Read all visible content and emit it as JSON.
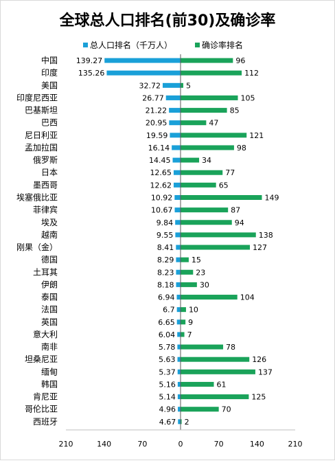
{
  "chart_data": {
    "type": "bar",
    "orientation": "horizontal-diverging",
    "title": "全球总人口排名(前30)及确诊率",
    "legend_position": "top",
    "grid": false,
    "xlim": [
      -210,
      210
    ],
    "x_tick_labels": [
      "210",
      "140",
      "70",
      "0",
      "70",
      "140",
      "210"
    ],
    "categories": [
      "中国",
      "印度",
      "美国",
      "印度尼西亚",
      "巴基斯坦",
      "巴西",
      "尼日利亚",
      "孟加拉国",
      "俄罗斯",
      "日本",
      "墨西哥",
      "埃塞俄比亚",
      "菲律宾",
      "埃及",
      "越南",
      "刚果（金）",
      "德国",
      "土耳其",
      "伊朗",
      "泰国",
      "法国",
      "英国",
      "意大利",
      "南非",
      "坦桑尼亚",
      "缅甸",
      "韩国",
      "肯尼亚",
      "哥伦比亚",
      "西班牙"
    ],
    "series": [
      {
        "name": "总人口排名（千万人）",
        "color": "#1aa0d8",
        "direction": "left",
        "values": [
          139.27,
          135.26,
          32.72,
          26.77,
          21.22,
          20.95,
          19.59,
          16.14,
          14.45,
          12.65,
          12.62,
          10.92,
          10.67,
          9.84,
          9.55,
          8.41,
          8.29,
          8.23,
          8.18,
          6.94,
          6.7,
          6.65,
          6.04,
          5.78,
          5.63,
          5.37,
          5.16,
          5.14,
          4.96,
          4.67
        ],
        "labels": [
          "139.27",
          "135.26",
          "32.72",
          "26.77",
          "21.22",
          "20.95",
          "19.59",
          "16.14",
          "14.45",
          "12.65",
          "12.62",
          "10.92",
          "10.67",
          "9.84",
          "9.55",
          "8.41",
          "8.29",
          "8.23",
          "8.18",
          "6.94",
          "6.7",
          "6.65",
          "6.04",
          "5.78",
          "5.63",
          "5.37",
          "5.16",
          "5.14",
          "4.96",
          "4.67"
        ]
      },
      {
        "name": "确诊率排名",
        "color": "#1aa35a",
        "direction": "right",
        "values": [
          96,
          112,
          5,
          105,
          85,
          47,
          121,
          98,
          34,
          77,
          65,
          149,
          87,
          94,
          138,
          127,
          15,
          23,
          30,
          104,
          10,
          9,
          7,
          78,
          126,
          137,
          61,
          125,
          70,
          2
        ],
        "labels": [
          "96",
          "112",
          "5",
          "105",
          "85",
          "47",
          "121",
          "98",
          "34",
          "77",
          "65",
          "149",
          "87",
          "94",
          "138",
          "127",
          "15",
          "23",
          "30",
          "104",
          "10",
          "9",
          "7",
          "78",
          "126",
          "137",
          "61",
          "125",
          "70",
          "2"
        ]
      }
    ]
  }
}
